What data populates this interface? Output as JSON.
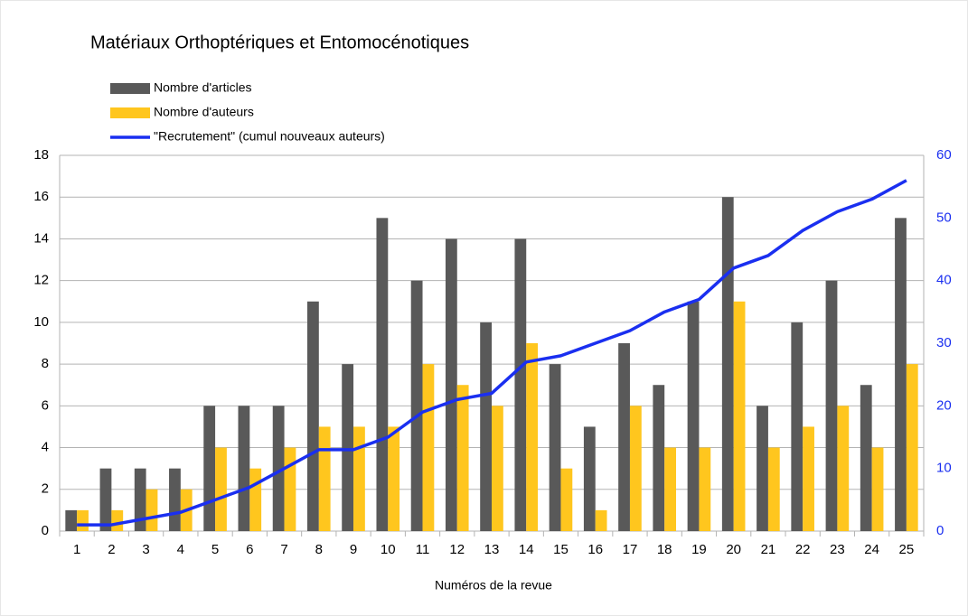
{
  "chart_data": {
    "type": "bar",
    "title": "Matériaux Orthoptériques et Entomocénotiques",
    "x_label": "Numéros de la revue",
    "categories": [
      "1",
      "2",
      "3",
      "4",
      "5",
      "6",
      "7",
      "8",
      "9",
      "10",
      "11",
      "12",
      "13",
      "14",
      "15",
      "16",
      "17",
      "18",
      "19",
      "20",
      "21",
      "22",
      "23",
      "24",
      "25"
    ],
    "series": [
      {
        "name": "Nombre d'articles",
        "color": "#595959",
        "values": [
          1,
          3,
          3,
          3,
          6,
          6,
          6,
          11,
          8,
          15,
          12,
          14,
          10,
          14,
          8,
          5,
          9,
          7,
          11,
          16,
          6,
          10,
          12,
          7,
          15
        ]
      },
      {
        "name": "Nombre d'auteurs",
        "color": "#ffc61e",
        "values": [
          1,
          1,
          2,
          2,
          4,
          3,
          4,
          5,
          5,
          5,
          8,
          7,
          6,
          9,
          3,
          1,
          6,
          4,
          4,
          11,
          4,
          5,
          6,
          4,
          8
        ]
      },
      {
        "name": "\"Recrutement\" (cumul nouveaux auteurs)",
        "color": "#1a2ff0",
        "type": "line",
        "axis": "y2",
        "values": [
          1,
          1,
          2,
          3,
          5,
          7,
          10,
          13,
          13,
          15,
          19,
          21,
          22,
          27,
          28,
          30,
          32,
          35,
          37,
          42,
          44,
          48,
          51,
          53,
          56
        ]
      }
    ],
    "ylim": [
      0,
      18
    ],
    "yticks": [
      0,
      2,
      4,
      6,
      8,
      10,
      12,
      14,
      16,
      18
    ],
    "y2lim": [
      0,
      60
    ],
    "y2ticks": [
      0,
      10,
      20,
      30,
      40,
      50,
      60
    ],
    "y2_color": "#1a2ff0",
    "grid": true,
    "legend": "top-left"
  }
}
